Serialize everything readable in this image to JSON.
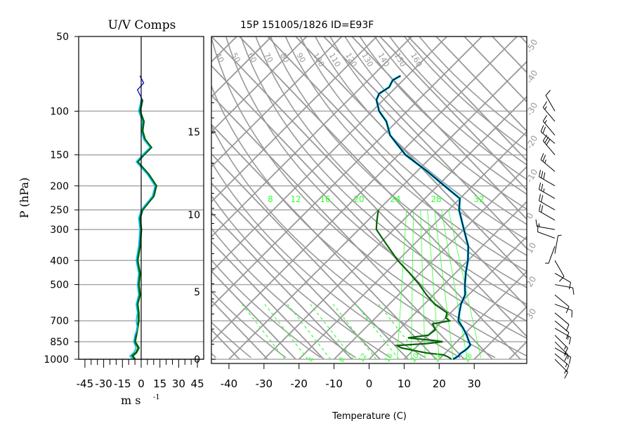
{
  "chart_data": [
    {
      "type": "line",
      "title": "U/V Comps",
      "xlabel": "m s",
      "xlabel_exp": "-1",
      "ylabel": "P (hPa)",
      "xlim": [
        -50,
        50
      ],
      "x_ticks": [
        "-45",
        "-30",
        "-15",
        "0",
        "15",
        "30",
        "45"
      ],
      "y_ticks": [
        "50",
        "100",
        "150",
        "200",
        "250",
        "300",
        "400",
        "500",
        "700",
        "850",
        "1000"
      ],
      "colors": {
        "u": "#006400",
        "v": "#00bfff",
        "upper": "#0000cc"
      },
      "series": [
        {
          "key": "u",
          "pressure": [
            1000,
            970,
            940,
            900,
            850,
            800,
            750,
            700,
            650,
            600,
            550,
            500,
            450,
            400,
            350,
            300,
            270,
            250,
            220,
            200,
            180,
            160,
            150,
            140,
            130,
            120,
            110,
            100,
            90
          ],
          "values": [
            -5,
            -7,
            -4,
            -2,
            -5,
            -4,
            -3,
            -2,
            -2,
            -3,
            -1,
            -2,
            -1,
            -3,
            -1,
            0,
            -1,
            1,
            10,
            12,
            6,
            -3,
            2,
            8,
            3,
            1,
            2,
            -1,
            1
          ]
        },
        {
          "key": "v",
          "pressure": [
            1000,
            970,
            940,
            900,
            850,
            800,
            750,
            700,
            650,
            600,
            550,
            500,
            450,
            400,
            350,
            300,
            270,
            250,
            220,
            200,
            180,
            160,
            150,
            140,
            130,
            120,
            110,
            100,
            90
          ],
          "values": [
            -7,
            -9,
            -6,
            -4,
            -6,
            -5,
            -3,
            -4,
            -3,
            -4,
            -2,
            -3,
            -2,
            -4,
            -2,
            -1,
            -2,
            0,
            9,
            11,
            5,
            -4,
            1,
            7,
            2,
            0,
            1,
            -2,
            0
          ]
        },
        {
          "key": "upper",
          "pressure": [
            90,
            82,
            77,
            72
          ],
          "values": [
            1,
            -3,
            2,
            -1
          ]
        }
      ]
    },
    {
      "type": "line",
      "title": "15P 151005/1826 ID=E93F",
      "xlabel": "Temperature (C)",
      "xlim": [
        -45,
        45
      ],
      "x_ticks": [
        "-40",
        "-30",
        "-20",
        "-10",
        "0",
        "10",
        "20",
        "30"
      ],
      "height_ticks": [
        "0",
        "5",
        "10",
        "15"
      ],
      "isotherm_labels": [
        "40",
        "50",
        "60",
        "70",
        "80",
        "90",
        "100",
        "110",
        "120",
        "130",
        "140",
        "150",
        "160"
      ],
      "mixing_ratio_labels": [
        "8",
        "12",
        "16",
        "20",
        "24",
        "28",
        "32"
      ],
      "bottom_labels": [
        "4",
        "8",
        "12",
        "16",
        "20",
        "24",
        "28"
      ],
      "right_labels": [
        "-50",
        "-40",
        "-30",
        "-20",
        "-10",
        "0",
        "10",
        "20",
        "30"
      ],
      "colors": {
        "temperature": "#000000",
        "dewpoint": "#006400",
        "grid": "#999999",
        "moist": "#33ff33",
        "profile_blue": "#00bfff"
      },
      "series": [
        {
          "key": "temperature",
          "pressure": [
            1000,
            970,
            950,
            925,
            900,
            875,
            850,
            800,
            750,
            700,
            650,
            600,
            550,
            500,
            450,
            400,
            350,
            300,
            250,
            225,
            200,
            175,
            150,
            125,
            110,
            100,
            90,
            85,
            80,
            75,
            72
          ],
          "values": [
            24,
            24.6,
            24.4,
            24.8,
            25,
            24.8,
            23.5,
            21,
            18,
            14.5,
            12.5,
            10.5,
            9,
            6,
            3,
            0,
            -4,
            -10,
            -17,
            -20,
            -28,
            -37,
            -48,
            -58,
            -63,
            -68,
            -72,
            -73,
            -72,
            -73,
            -72
          ]
        },
        {
          "key": "dewpoint",
          "pressure": [
            1000,
            980,
            960,
            945,
            930,
            900,
            880,
            865,
            850,
            840,
            820,
            800,
            760,
            720,
            700,
            680,
            650,
            600,
            550,
            500,
            450,
            400,
            350,
            300,
            280,
            260,
            250
          ],
          "values": [
            23.5,
            22,
            20,
            15,
            12,
            6,
            4,
            12,
            16,
            13,
            5,
            10,
            10.5,
            8,
            12,
            10,
            9,
            3,
            -2,
            -7,
            -13,
            -20,
            -27,
            -35,
            -37,
            -39,
            -40
          ]
        }
      ],
      "wind_barbs": [
        {
          "p": 1000,
          "dir": 135,
          "speed": 15
        },
        {
          "p": 950,
          "dir": 130,
          "speed": 15
        },
        {
          "p": 900,
          "dir": 120,
          "speed": 15
        },
        {
          "p": 850,
          "dir": 135,
          "speed": 15
        },
        {
          "p": 800,
          "dir": 135,
          "speed": 15
        },
        {
          "p": 750,
          "dir": 120,
          "speed": 15
        },
        {
          "p": 700,
          "dir": 130,
          "speed": 10
        },
        {
          "p": 650,
          "dir": 130,
          "speed": 10
        },
        {
          "p": 600,
          "dir": 110,
          "speed": 10
        },
        {
          "p": 550,
          "dir": 130,
          "speed": 10
        },
        {
          "p": 500,
          "dir": 100,
          "speed": 10
        },
        {
          "p": 450,
          "dir": 120,
          "speed": 10
        },
        {
          "p": 400,
          "dir": 150,
          "speed": 10
        },
        {
          "p": 375,
          "dir": 10,
          "speed": 5
        },
        {
          "p": 350,
          "dir": 200,
          "speed": 5
        },
        {
          "p": 325,
          "dir": 290,
          "speed": 10
        },
        {
          "p": 300,
          "dir": 280,
          "speed": 15
        },
        {
          "p": 275,
          "dir": 300,
          "speed": 20
        },
        {
          "p": 250,
          "dir": 300,
          "speed": 20
        },
        {
          "p": 225,
          "dir": 300,
          "speed": 25
        },
        {
          "p": 200,
          "dir": 300,
          "speed": 30
        },
        {
          "p": 175,
          "dir": 310,
          "speed": 25
        },
        {
          "p": 150,
          "dir": 320,
          "speed": 30
        },
        {
          "p": 135,
          "dir": 310,
          "speed": 20
        },
        {
          "p": 125,
          "dir": 320,
          "speed": 15
        },
        {
          "p": 110,
          "dir": 320,
          "speed": 15
        },
        {
          "p": 100,
          "dir": 330,
          "speed": 10
        }
      ]
    }
  ]
}
